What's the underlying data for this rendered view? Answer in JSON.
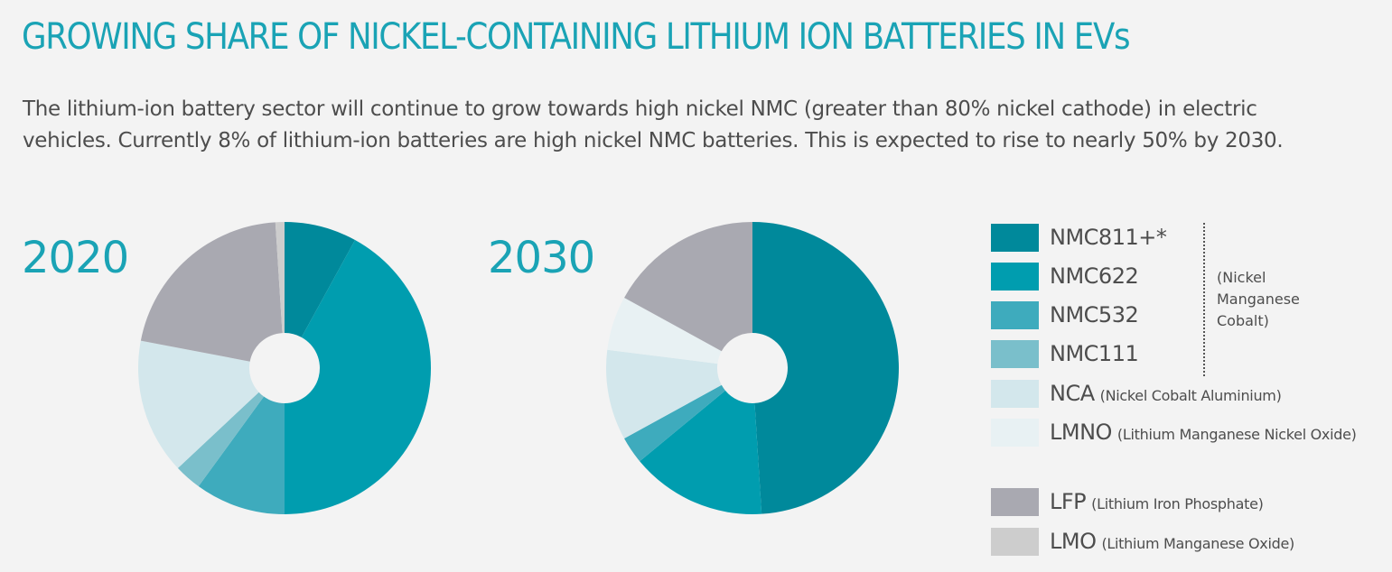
{
  "header": {
    "title": "GROWING SHARE OF NICKEL-CONTAINING LITHIUM ION BATTERIES IN EVs",
    "subtitle_line1": "The lithium-ion battery sector will continue to grow towards high nickel NMC (greater than 80% nickel cathode) in electric",
    "subtitle_line2": "vehicles. Currently 8% of lithium-ion batteries are high nickel NMC batteries. This is expected to rise to nearly 50% by 2030."
  },
  "legend": {
    "items": [
      {
        "key": "NMC811",
        "label": "NMC811+*",
        "desc": "",
        "color": "#00899b"
      },
      {
        "key": "NMC622",
        "label": "NMC622",
        "desc": "",
        "color": "#009daf"
      },
      {
        "key": "NMC532",
        "label": "NMC532",
        "desc": "",
        "color": "#3eabbd"
      },
      {
        "key": "NMC111",
        "label": "NMC111",
        "desc": "",
        "color": "#7abfcb"
      },
      {
        "key": "NCA",
        "label": "NCA",
        "desc": "(Nickel Cobalt Aluminium)",
        "color": "#d3e7ec"
      },
      {
        "key": "LMNO",
        "label": "LMNO",
        "desc": "(Lithium Manganese Nickel Oxide)",
        "color": "#e8f1f3"
      },
      {
        "key": "LFP",
        "label": "LFP",
        "desc": "(Lithium Iron Phosphate)",
        "color": "#a9a9b1"
      },
      {
        "key": "LMO",
        "label": "LMO",
        "desc": "(Lithium Manganese Oxide)",
        "color": "#cdcdcd"
      }
    ],
    "nmc_note_line1": "(Nickel",
    "nmc_note_line2": "Manganese",
    "nmc_note_line3": "Cobalt)"
  },
  "chart_data": [
    {
      "type": "pie",
      "title": "2020",
      "donut": true,
      "start_angle": "12 o'clock",
      "direction": "clockwise",
      "categories": [
        "NMC811+*",
        "NMC622",
        "NMC532",
        "NMC111",
        "NCA",
        "LMNO",
        "LFP",
        "LMO"
      ],
      "values": [
        8,
        42,
        10,
        3,
        15,
        0,
        21,
        1
      ]
    },
    {
      "type": "pie",
      "title": "2030",
      "donut": true,
      "start_angle": "12 o'clock",
      "direction": "clockwise",
      "categories": [
        "NMC811+*",
        "NMC622",
        "NMC532",
        "NMC111",
        "NCA",
        "LMNO",
        "LFP",
        "LMO"
      ],
      "values": [
        49,
        15,
        3,
        0,
        10,
        6,
        17,
        0
      ]
    }
  ]
}
